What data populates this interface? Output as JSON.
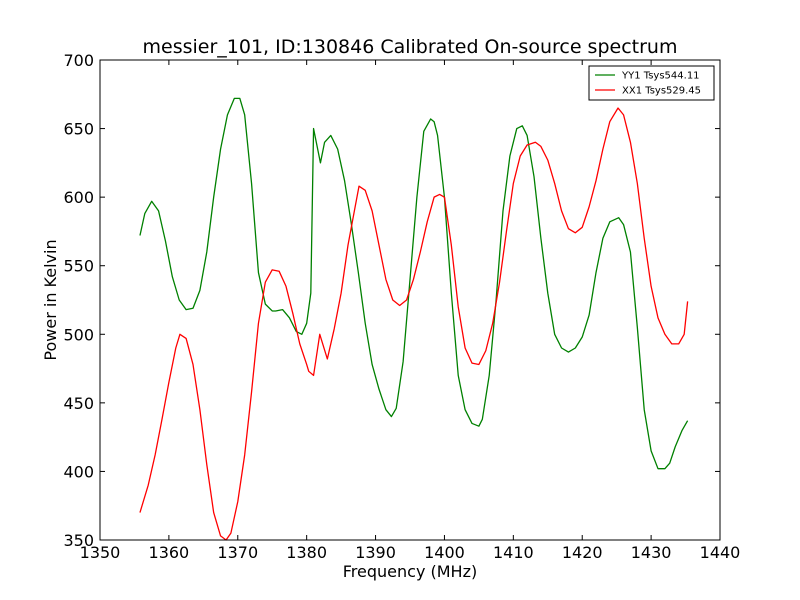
{
  "chart_data": {
    "type": "line",
    "title": "messier_101, ID:130846 Calibrated On-source spectrum",
    "xlabel": "Frequency (MHz)",
    "ylabel": "Power in Kelvin",
    "xlim": [
      1350,
      1440
    ],
    "ylim": [
      350,
      700
    ],
    "xticks": [
      1350,
      1360,
      1370,
      1380,
      1390,
      1400,
      1410,
      1420,
      1430,
      1440
    ],
    "yticks": [
      350,
      400,
      450,
      500,
      550,
      600,
      650,
      700
    ],
    "grid": false,
    "legend_position": "top-right",
    "series": [
      {
        "name": "YY1 Tsys544.11",
        "color": "#008000",
        "x": [
          1355.8,
          1356.5,
          1357.5,
          1358.5,
          1359.5,
          1360.5,
          1361.5,
          1362.5,
          1363.5,
          1364.5,
          1365.5,
          1366.5,
          1367.5,
          1368.5,
          1369.5,
          1370.3,
          1371.0,
          1372.0,
          1373.0,
          1374.0,
          1375.0,
          1375.5,
          1376.5,
          1377.5,
          1378.5,
          1379.3,
          1380.0,
          1380.6,
          1381.0,
          1382.0,
          1382.6,
          1383.5,
          1384.5,
          1385.5,
          1386.5,
          1387.5,
          1388.5,
          1389.5,
          1390.5,
          1391.5,
          1392.3,
          1393.0,
          1394.0,
          1395.0,
          1396.0,
          1397.0,
          1398.0,
          1398.5,
          1399.0,
          1400.0,
          1401.0,
          1402.0,
          1403.0,
          1404.0,
          1405.0,
          1405.5,
          1406.5,
          1407.5,
          1408.5,
          1409.5,
          1410.5,
          1411.3,
          1412.0,
          1413.0,
          1414.0,
          1415.0,
          1416.0,
          1417.0,
          1418.0,
          1419.0,
          1420.0,
          1421.0,
          1422.0,
          1423.0,
          1424.0,
          1425.3,
          1426.0,
          1427.0,
          1428.0,
          1429.0,
          1430.0,
          1431.0,
          1432.0,
          1432.7,
          1433.5,
          1434.5,
          1435.3
        ],
        "values": [
          572,
          588,
          597,
          590,
          568,
          542,
          525,
          518,
          519,
          532,
          560,
          600,
          635,
          660,
          672,
          672,
          660,
          610,
          545,
          522,
          517,
          517,
          518,
          512,
          502,
          500,
          508,
          530,
          650,
          625,
          640,
          645,
          635,
          612,
          580,
          545,
          508,
          478,
          460,
          445,
          440,
          446,
          480,
          540,
          600,
          648,
          657,
          655,
          645,
          600,
          530,
          470,
          445,
          435,
          433,
          438,
          470,
          525,
          590,
          630,
          650,
          652,
          645,
          615,
          570,
          530,
          500,
          490,
          487,
          490,
          498,
          514,
          545,
          570,
          582,
          585,
          580,
          560,
          505,
          445,
          415,
          402,
          402,
          406,
          418,
          430,
          437
        ]
      },
      {
        "name": "XX1 Tsys529.45",
        "color": "#ff0000",
        "x": [
          1355.8,
          1357.0,
          1358.0,
          1359.0,
          1360.0,
          1361.0,
          1361.6,
          1362.5,
          1363.5,
          1364.5,
          1365.5,
          1366.5,
          1367.5,
          1368.3,
          1369.0,
          1370.0,
          1371.0,
          1372.0,
          1373.0,
          1374.0,
          1375.0,
          1376.0,
          1377.0,
          1378.0,
          1379.0,
          1380.0,
          1380.3,
          1381.0,
          1381.9,
          1383.0,
          1384.0,
          1385.0,
          1386.0,
          1387.0,
          1387.6,
          1388.5,
          1389.5,
          1390.5,
          1391.5,
          1392.5,
          1393.5,
          1394.5,
          1395.5,
          1396.5,
          1397.5,
          1398.5,
          1399.3,
          1400.0,
          1401.0,
          1402.0,
          1403.0,
          1404.0,
          1405.0,
          1406.0,
          1407.0,
          1408.0,
          1409.0,
          1410.0,
          1411.0,
          1412.0,
          1413.2,
          1414.0,
          1415.0,
          1416.0,
          1417.0,
          1418.0,
          1419.0,
          1420.0,
          1421.0,
          1422.0,
          1423.0,
          1424.0,
          1425.2,
          1426.0,
          1427.0,
          1428.0,
          1429.0,
          1430.0,
          1431.0,
          1432.0,
          1433.0,
          1434.0,
          1434.8,
          1435.3
        ],
        "values": [
          370,
          390,
          412,
          438,
          465,
          490,
          500,
          497,
          478,
          445,
          405,
          370,
          353,
          350,
          355,
          378,
          412,
          458,
          508,
          538,
          547,
          546,
          535,
          515,
          493,
          478,
          473,
          470,
          500,
          482,
          504,
          530,
          565,
          592,
          608,
          605,
          590,
          565,
          540,
          525,
          521,
          525,
          540,
          560,
          582,
          600,
          602,
          600,
          565,
          520,
          490,
          479,
          478,
          488,
          508,
          538,
          575,
          610,
          630,
          638,
          640,
          637,
          627,
          610,
          590,
          577,
          574,
          578,
          593,
          612,
          635,
          655,
          665,
          660,
          640,
          610,
          570,
          535,
          512,
          500,
          493,
          493,
          500,
          524
        ]
      }
    ]
  }
}
